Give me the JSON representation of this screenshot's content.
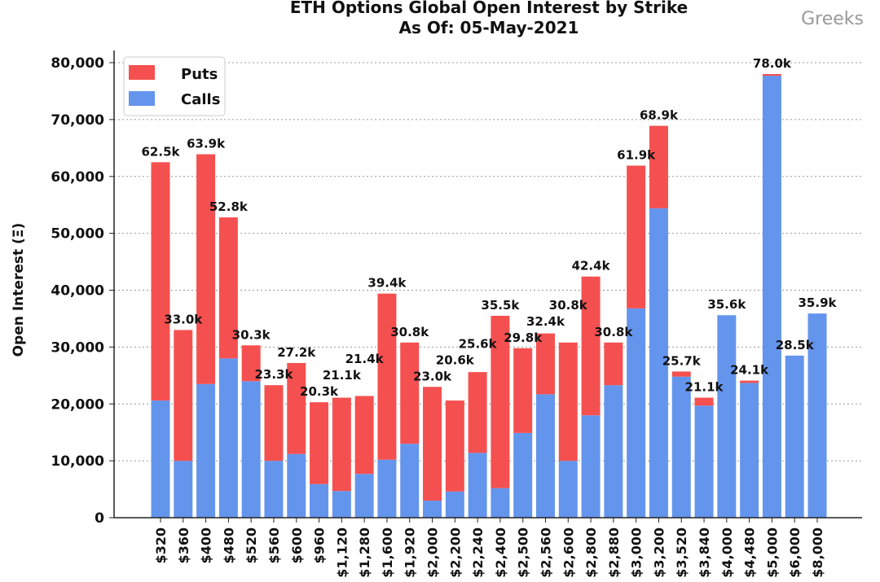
{
  "chart_data": {
    "type": "bar",
    "stacked": true,
    "title": "ETH Options Global Open Interest by Strike",
    "subtitle": "As Of: 05-May-2021",
    "xlabel": "",
    "ylabel": "Open Interest (Ξ)",
    "ylim": [
      0,
      80000
    ],
    "yticks": [
      "0",
      "10,000",
      "20,000",
      "30,000",
      "40,000",
      "50,000",
      "60,000",
      "70,000",
      "80,000"
    ],
    "grid": "horizontal dotted",
    "legend_position": "top-left",
    "categories": [
      "$320",
      "$360",
      "$400",
      "$480",
      "$520",
      "$560",
      "$600",
      "$960",
      "$1,120",
      "$1,280",
      "$1,600",
      "$1,920",
      "$2,000",
      "$2,200",
      "$2,240",
      "$2,400",
      "$2,500",
      "$2,560",
      "$2,600",
      "$2,800",
      "$2,880",
      "$3,000",
      "$3,200",
      "$3,520",
      "$3,840",
      "$4,000",
      "$4,480",
      "$5,000",
      "$6,000",
      "$8,000"
    ],
    "series": [
      {
        "name": "Calls",
        "color": "#6495ed",
        "values": [
          20600,
          10000,
          23500,
          28000,
          24000,
          10000,
          11200,
          5900,
          4700,
          7700,
          10200,
          13000,
          3000,
          4600,
          11400,
          5200,
          14900,
          21700,
          10000,
          18000,
          23300,
          36800,
          54400,
          24800,
          19700,
          35600,
          23700,
          77700,
          28500,
          35900
        ]
      },
      {
        "name": "Puts",
        "color": "#f55050",
        "values": [
          41900,
          23000,
          40400,
          24800,
          6300,
          13300,
          16000,
          14400,
          16400,
          13700,
          29200,
          17800,
          20000,
          16000,
          14200,
          30300,
          14900,
          10700,
          20800,
          24400,
          7500,
          25100,
          14500,
          900,
          1400,
          0,
          400,
          300,
          0,
          0
        ]
      }
    ],
    "data_labels": [
      "62.5k",
      "33.0k",
      "63.9k",
      "52.8k",
      "30.3k",
      "23.3k",
      "27.2k",
      "20.3k",
      "21.1k",
      "21.4k",
      "39.4k",
      "30.8k",
      "23.0k",
      "20.6k",
      "25.6k",
      "35.5k",
      "29.8k",
      "32.4k",
      "30.8k",
      "42.4k",
      "30.8k",
      "61.9k",
      "68.9k",
      "25.7k",
      "21.1k",
      "35.6k",
      "24.1k",
      "78.0k",
      "28.5k",
      "35.9k"
    ]
  },
  "watermark": "Greeks"
}
